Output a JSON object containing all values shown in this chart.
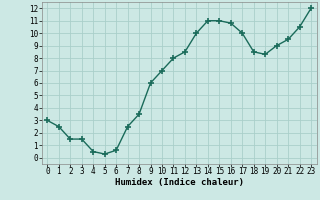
{
  "x": [
    0,
    1,
    2,
    3,
    4,
    5,
    6,
    7,
    8,
    9,
    10,
    11,
    12,
    13,
    14,
    15,
    16,
    17,
    18,
    19,
    20,
    21,
    22,
    23
  ],
  "y": [
    3.0,
    2.5,
    1.5,
    1.5,
    0.5,
    0.3,
    0.6,
    2.5,
    3.5,
    6.0,
    7.0,
    8.0,
    8.5,
    10.0,
    11.0,
    11.0,
    10.8,
    10.0,
    8.5,
    8.3,
    9.0,
    9.5,
    10.5,
    12.0
  ],
  "line_color": "#1a6b5a",
  "marker": "+",
  "marker_size": 4.0,
  "marker_lw": 1.2,
  "line_width": 1.0,
  "bg_color": "#cce8e4",
  "grid_color": "#aacfca",
  "xlabel": "Humidex (Indice chaleur)",
  "xlabel_fontsize": 6.5,
  "tick_fontsize": 5.5,
  "xlim": [
    -0.5,
    23.5
  ],
  "ylim": [
    -0.5,
    12.5
  ],
  "xticks": [
    0,
    1,
    2,
    3,
    4,
    5,
    6,
    7,
    8,
    9,
    10,
    11,
    12,
    13,
    14,
    15,
    16,
    17,
    18,
    19,
    20,
    21,
    22,
    23
  ],
  "yticks": [
    0,
    1,
    2,
    3,
    4,
    5,
    6,
    7,
    8,
    9,
    10,
    11,
    12
  ]
}
